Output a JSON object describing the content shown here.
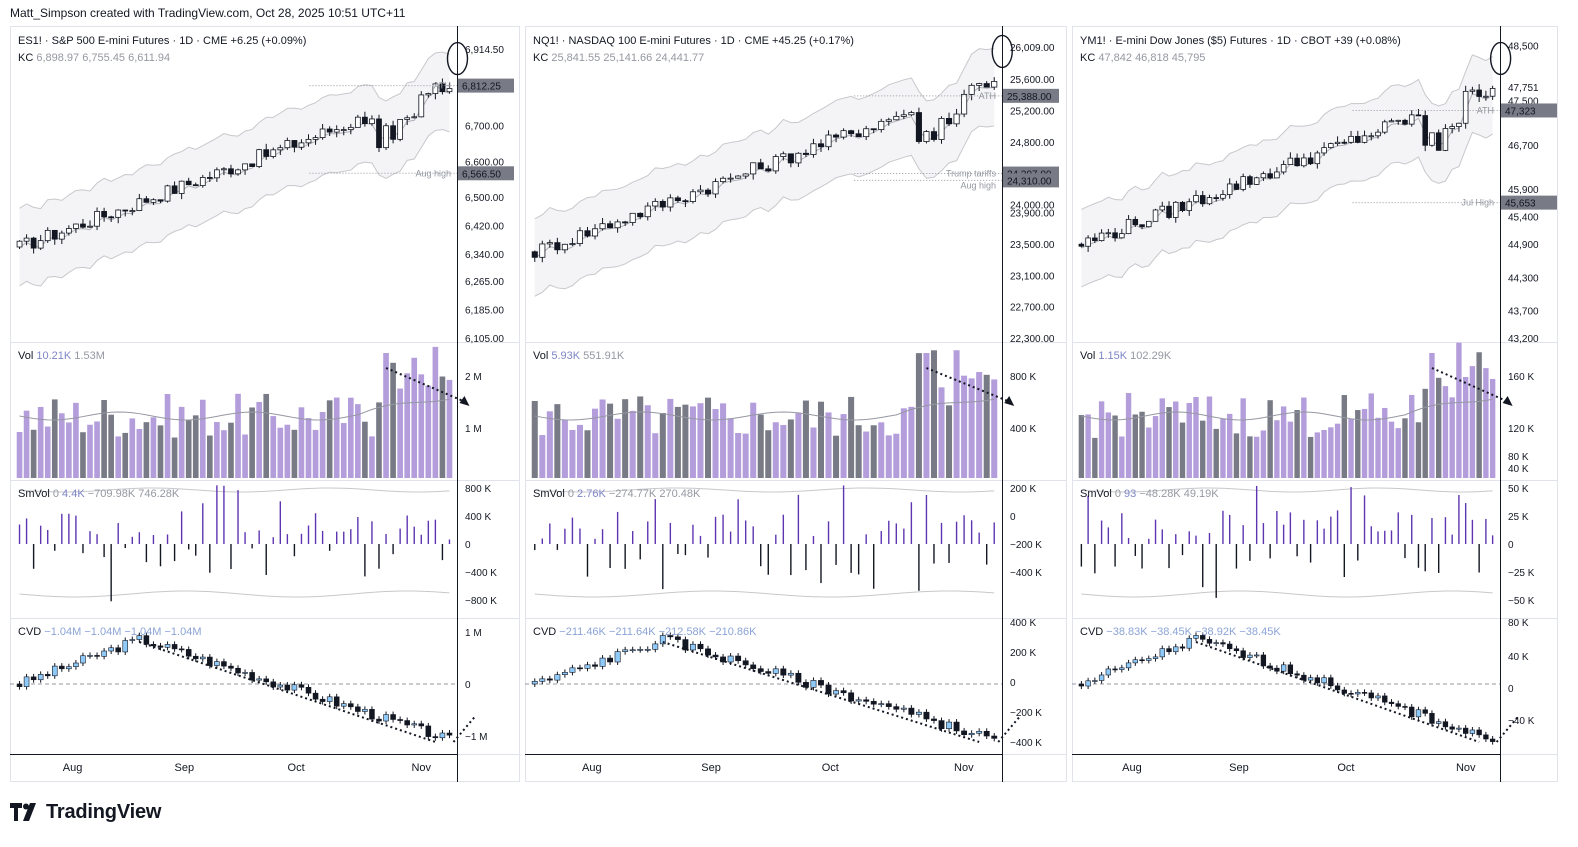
{
  "header": {
    "credit": "Matt_Simpson created with TradingView.com, Oct 28, 2025 10:51 UTC+11"
  },
  "brand": {
    "name": "TradingView"
  },
  "colors": {
    "candle_up": "#ffffff",
    "candle_down": "#131722",
    "vol_up": "#b39ddb",
    "vol_down": "#787b86",
    "smvol_up": "#5e35b1",
    "cvd_up": "#90caf9",
    "band": "#e0e0e0",
    "price_label_bg": "#787b86"
  },
  "chart_data": [
    {
      "type": "candlestick",
      "symbol": "ES1!",
      "title": "ES1! · S&P 500 E-mini Futures · 1D · CME",
      "change": "+6.25 (+0.09%)",
      "kc": {
        "label": "KC",
        "values": [
          "6,898.97",
          "6,755.45",
          "6,611.94"
        ]
      },
      "x_labels": [
        "Aug",
        "Sep",
        "Oct",
        "Nov"
      ],
      "price_axis": [
        "6,914.50",
        "6,700.00",
        "6,600.00",
        "6,500.00",
        "6,420.00",
        "6,340.00",
        "6,265.00",
        "6,185.00",
        "6,105.00"
      ],
      "price_tags": [
        "6,812.25",
        "6,566.50"
      ],
      "levels": [
        {
          "name": "ATH",
          "value": 6812.25
        },
        {
          "name": "Aug high",
          "value": 6566.5
        }
      ],
      "ylim": [
        6105,
        6940
      ],
      "ohlc_start_end": [
        6360,
        6812
      ],
      "vol": {
        "label": "Vol",
        "value": "10.21K",
        "ma": "1.53M",
        "axis": [
          "2 M",
          "1 M"
        ]
      },
      "smvol": {
        "label": "SmVol",
        "values": [
          "0",
          "4.4K",
          "−709.98K",
          "746.28K"
        ],
        "axis": [
          "800 K",
          "400 K",
          "0",
          "−400 K",
          "−800 K"
        ]
      },
      "cvd": {
        "label": "CVD",
        "values": [
          "−1.04M",
          "−1.04M",
          "−1.04M",
          "−1.04M"
        ],
        "axis": [
          "1 M",
          "0",
          "−1 M"
        ]
      }
    },
    {
      "type": "candlestick",
      "symbol": "NQ1!",
      "title": "NQ1! · NASDAQ 100 E-mini Futures · 1D · CME",
      "change": "+45.25 (+0.17%)",
      "kc": {
        "label": "KC",
        "values": [
          "25,841.55",
          "25,141.66",
          "24,441.77"
        ]
      },
      "x_labels": [
        "Aug",
        "Sep",
        "Oct",
        "Nov"
      ],
      "price_axis": [
        "26,009.00",
        "25,600.00",
        "25,200.00",
        "24,800.00",
        "24,000.00",
        "23,900.00",
        "23,500.00",
        "23,100.00",
        "22,700.00",
        "22,300.00"
      ],
      "price_tags": [
        "25,388.00",
        "24,397.00",
        "24,310.00"
      ],
      "levels": [
        {
          "name": "ATH",
          "value": 25388
        },
        {
          "name": "Trump tariffs",
          "value": 24397
        },
        {
          "name": "Aug high",
          "value": 24310
        }
      ],
      "ylim": [
        22300,
        26100
      ],
      "ohlc_start_end": [
        23400,
        25600
      ],
      "vol": {
        "label": "Vol",
        "value": "5.93K",
        "ma": "551.91K",
        "axis": [
          "800 K",
          "400 K"
        ]
      },
      "smvol": {
        "label": "SmVol",
        "values": [
          "0",
          "2.76K",
          "−274.77K",
          "270.48K"
        ],
        "axis": [
          "200 K",
          "0",
          "−200 K",
          "−400 K"
        ]
      },
      "cvd": {
        "label": "CVD",
        "values": [
          "−211.46K",
          "−211.64K",
          "−212.58K",
          "−210.86K"
        ],
        "axis": [
          "400 K",
          "200 K",
          "0",
          "−200 K",
          "−400 K"
        ]
      }
    },
    {
      "type": "candlestick",
      "symbol": "YM1!",
      "title": "YM1! · E-mini Dow Jones ($5) Futures · 1D · CBOT",
      "change": "+39 (+0.08%)",
      "kc": {
        "label": "KC",
        "values": [
          "47,842",
          "46,818",
          "45,795"
        ]
      },
      "x_labels": [
        "Aug",
        "Sep",
        "Oct",
        "Nov"
      ],
      "price_axis": [
        "48,500",
        "47,751",
        "47,500",
        "46,700",
        "45,900",
        "45,400",
        "44,900",
        "44,300",
        "43,700",
        "43,200"
      ],
      "price_tags": [
        "47,323",
        "45,653"
      ],
      "levels": [
        {
          "name": "ATH",
          "value": 47323
        },
        {
          "name": "Jul High",
          "value": 45653
        }
      ],
      "ylim": [
        43200,
        48600
      ],
      "ohlc_start_end": [
        44900,
        47750
      ],
      "vol": {
        "label": "Vol",
        "value": "1.15K",
        "ma": "102.29K",
        "axis": [
          "160 K",
          "120 K",
          "80 K",
          "40 K"
        ]
      },
      "smvol": {
        "label": "SmVol",
        "values": [
          "0",
          "93",
          "−48.28K",
          "49.19K"
        ],
        "axis": [
          "50 K",
          "25 K",
          "0",
          "−25 K",
          "−50 K"
        ]
      },
      "cvd": {
        "label": "CVD",
        "values": [
          "−38.83K",
          "−38.45K",
          "−38.92K",
          "−38.45K"
        ],
        "axis": [
          "80 K",
          "40 K",
          "0",
          "−40 K"
        ]
      }
    }
  ]
}
